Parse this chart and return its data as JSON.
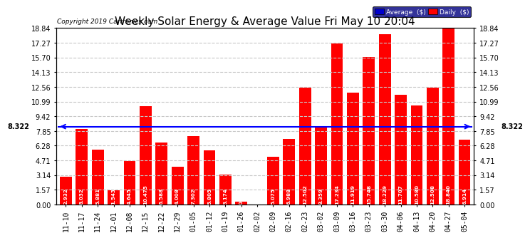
{
  "title": "Weekly Solar Energy & Average Value Fri May 10 20:04",
  "copyright": "Copyright 2019 Cartronics.com",
  "categories": [
    "11-10",
    "11-17",
    "11-24",
    "12-01",
    "12-08",
    "12-15",
    "12-22",
    "12-29",
    "01-05",
    "01-12",
    "01-19",
    "01-26",
    "02-02",
    "02-09",
    "02-16",
    "02-23",
    "03-02",
    "03-09",
    "03-16",
    "03-23",
    "03-30",
    "04-06",
    "04-13",
    "04-20",
    "04-27",
    "05-04"
  ],
  "values": [
    2.932,
    8.032,
    5.881,
    1.543,
    4.645,
    10.475,
    6.588,
    4.008,
    7.302,
    5.805,
    3.174,
    0.332,
    0.0,
    5.075,
    6.988,
    12.502,
    8.359,
    17.234,
    11.919,
    15.748,
    18.229,
    11.707,
    10.58,
    12.508,
    18.84,
    6.914
  ],
  "average": 8.322,
  "bar_color": "#ff0000",
  "average_line_color": "#0000ff",
  "background_color": "#ffffff",
  "grid_color": "#c8c8c8",
  "yticks": [
    0.0,
    1.57,
    3.14,
    4.71,
    6.28,
    7.85,
    9.42,
    10.99,
    12.56,
    14.13,
    15.7,
    17.27,
    18.84
  ],
  "ylim": [
    0,
    18.84
  ],
  "title_fontsize": 11,
  "tick_fontsize": 7,
  "label_fontsize": 5.2,
  "avg_label_fontsize": 7,
  "copyright_fontsize": 6.5,
  "legend_avg_color": "#0000cd",
  "legend_daily_color": "#ff0000"
}
